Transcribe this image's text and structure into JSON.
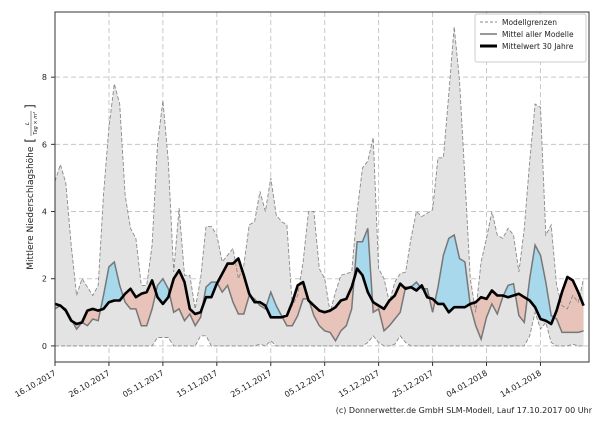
{
  "chart_data": {
    "type": "area",
    "ylabel": "Mittlere Niederschlagshöhe",
    "yunit": {
      "numerator": "L",
      "denominator": "Tag × m²"
    },
    "xlabel": "",
    "ylim": [
      -0.48,
      9.94
    ],
    "yticks": [
      0,
      2,
      4,
      6,
      8
    ],
    "xticks": [
      "16.10.2017",
      "26.10.2017",
      "05.11.2017",
      "15.11.2017",
      "25.11.2017",
      "05.12.2017",
      "15.12.2017",
      "25.12.2017",
      "04.01.2018",
      "14.01.2018"
    ],
    "xlim": [
      "16.10.2017",
      "23.01.2018"
    ],
    "grid": true,
    "legend_position": "top-right",
    "legend": [
      "Modellgrenzen",
      "Mittel aller Modelle",
      "Mittelwert 30 Jahre"
    ],
    "colors": {
      "band": "#e3e3e3",
      "above": "#a8d8eb",
      "below": "#e8c3b9",
      "below_bounds": "#fddcd3",
      "model_mean": "#777777",
      "climate_mean": "#000000",
      "bounds": "#8a8a8a"
    },
    "x": [
      "16.10.2017",
      "17.10.2017",
      "18.10.2017",
      "19.10.2017",
      "20.10.2017",
      "21.10.2017",
      "22.10.2017",
      "23.10.2017",
      "24.10.2017",
      "25.10.2017",
      "26.10.2017",
      "27.10.2017",
      "28.10.2017",
      "29.10.2017",
      "30.10.2017",
      "31.10.2017",
      "01.11.2017",
      "02.11.2017",
      "03.11.2017",
      "04.11.2017",
      "05.11.2017",
      "06.11.2017",
      "07.11.2017",
      "08.11.2017",
      "09.11.2017",
      "10.11.2017",
      "11.11.2017",
      "12.11.2017",
      "13.11.2017",
      "14.11.2017",
      "15.11.2017",
      "16.11.2017",
      "17.11.2017",
      "18.11.2017",
      "19.11.2017",
      "20.11.2017",
      "21.11.2017",
      "22.11.2017",
      "23.11.2017",
      "24.11.2017",
      "25.11.2017",
      "26.11.2017",
      "27.11.2017",
      "28.11.2017",
      "29.11.2017",
      "30.11.2017",
      "01.12.2017",
      "02.12.2017",
      "03.12.2017",
      "04.12.2017",
      "05.12.2017",
      "06.12.2017",
      "07.12.2017",
      "08.12.2017",
      "09.12.2017",
      "10.12.2017",
      "11.12.2017",
      "12.12.2017",
      "13.12.2017",
      "14.12.2017",
      "15.12.2017",
      "16.12.2017",
      "17.12.2017",
      "18.12.2017",
      "19.12.2017",
      "20.12.2017",
      "21.12.2017",
      "22.12.2017",
      "23.12.2017",
      "24.12.2017",
      "25.12.2017",
      "26.12.2017",
      "27.12.2017",
      "28.12.2017",
      "29.12.2017",
      "30.12.2017",
      "31.12.2017",
      "01.01.2018",
      "02.01.2018",
      "03.01.2018",
      "04.01.2018",
      "05.01.2018",
      "06.01.2018",
      "07.01.2018",
      "08.01.2018",
      "09.01.2018",
      "10.01.2018",
      "11.01.2018",
      "12.01.2018",
      "13.01.2018",
      "14.01.2018",
      "15.01.2018",
      "16.01.2018",
      "17.01.2018",
      "18.01.2018",
      "19.01.2018",
      "20.01.2018",
      "21.01.2018",
      "22.01.2018"
    ],
    "series": [
      {
        "name": "Modellgrenzen",
        "role": "upper",
        "values": [
          4.9,
          5.4,
          4.85,
          3.0,
          1.5,
          2.0,
          1.75,
          1.5,
          1.8,
          4.5,
          6.5,
          7.8,
          7.2,
          4.5,
          3.5,
          3.2,
          1.8,
          1.8,
          3.0,
          6.0,
          7.3,
          5.5,
          2.2,
          4.1,
          2.1,
          2.1,
          1.1,
          2.0,
          3.55,
          3.55,
          3.3,
          2.5,
          2.7,
          2.9,
          2.0,
          2.4,
          3.6,
          3.7,
          4.6,
          4.0,
          5.0,
          3.9,
          3.7,
          3.6,
          1.2,
          1.5,
          2.5,
          4.0,
          4.0,
          2.3,
          2.0,
          1.0,
          1.6,
          2.1,
          2.15,
          2.2,
          4.0,
          5.3,
          5.5,
          6.2,
          2.3,
          2.0,
          1.3,
          1.9,
          2.15,
          2.2,
          3.2,
          4.0,
          3.85,
          3.95,
          4.05,
          5.6,
          5.6,
          7.5,
          9.5,
          7.9,
          5.0,
          2.0,
          1.0,
          2.5,
          3.2,
          4.0,
          3.3,
          3.2,
          3.5,
          3.3,
          2.2,
          3.5,
          5.5,
          7.2,
          7.1,
          3.3,
          3.6,
          1.8,
          1.2,
          1.1,
          1.5,
          1.3,
          2.0
        ]
      },
      {
        "name": "Modellgrenzen",
        "role": "lower",
        "values": [
          0,
          0,
          0,
          0,
          0,
          0,
          0,
          0,
          0,
          0,
          0,
          0,
          0,
          0,
          0,
          0,
          0,
          0,
          0,
          0.25,
          0.25,
          0.25,
          0,
          0,
          0,
          0,
          0,
          0.3,
          0.3,
          0,
          0,
          0,
          0,
          0,
          0,
          0,
          0,
          0,
          0.05,
          0,
          0.15,
          0,
          0,
          0,
          0,
          0,
          0,
          0,
          0,
          0,
          0,
          0,
          0,
          0,
          0,
          0,
          0,
          0,
          0.1,
          0.3,
          0.1,
          0,
          0,
          0.05,
          0.3,
          0.1,
          0,
          0,
          0,
          0,
          0,
          0,
          0,
          0,
          0,
          0,
          0,
          0,
          0,
          0,
          0,
          0,
          0,
          0,
          0,
          0,
          0,
          0,
          0.3,
          1.0,
          0.5,
          0.7,
          0.1,
          0,
          0,
          0,
          0.05,
          0,
          0
        ]
      },
      {
        "name": "Mittel aller Modelle",
        "role": "model_mean",
        "values": [
          1.1,
          1.2,
          1.1,
          0.8,
          0.5,
          0.7,
          0.6,
          0.8,
          0.75,
          1.5,
          2.35,
          2.5,
          1.8,
          1.3,
          1.1,
          1.1,
          0.6,
          0.6,
          1.1,
          1.8,
          2.0,
          1.7,
          1.0,
          1.1,
          0.75,
          0.95,
          0.6,
          0.85,
          1.75,
          1.9,
          1.9,
          1.6,
          1.8,
          1.3,
          0.95,
          0.95,
          1.5,
          1.4,
          1.2,
          1.1,
          1.6,
          1.2,
          0.9,
          0.6,
          0.6,
          0.9,
          1.4,
          1.4,
          0.9,
          0.6,
          0.45,
          0.4,
          0.15,
          0.45,
          0.6,
          1.1,
          3.1,
          3.1,
          3.5,
          1.0,
          1.1,
          0.45,
          0.6,
          0.8,
          1.0,
          1.75,
          1.75,
          1.9,
          1.7,
          1.7,
          1.0,
          1.75,
          2.7,
          3.2,
          3.3,
          2.6,
          2.5,
          1.2,
          0.6,
          0.2,
          0.85,
          1.25,
          0.95,
          1.45,
          1.8,
          1.85,
          0.9,
          0.7,
          2.0,
          3.0,
          2.7,
          1.9,
          0.9,
          0.8,
          0.4,
          0.4,
          0.4,
          0.4,
          0.45
        ]
      },
      {
        "name": "Mittelwert 30 Jahre",
        "role": "climate_mean",
        "values": [
          1.25,
          1.2,
          1.05,
          0.75,
          0.65,
          0.7,
          1.05,
          1.1,
          1.05,
          1.1,
          1.3,
          1.35,
          1.35,
          1.55,
          1.7,
          1.45,
          1.55,
          1.6,
          1.95,
          1.45,
          1.25,
          1.45,
          2.0,
          2.25,
          1.9,
          1.1,
          0.95,
          1.0,
          1.45,
          1.45,
          1.85,
          2.15,
          2.45,
          2.45,
          2.6,
          2.1,
          1.55,
          1.3,
          1.3,
          1.2,
          0.85,
          0.85,
          0.85,
          0.9,
          1.3,
          1.8,
          1.9,
          1.35,
          1.2,
          1.05,
          1.0,
          1.05,
          1.15,
          1.35,
          1.4,
          1.75,
          2.3,
          2.1,
          1.6,
          1.3,
          1.2,
          1.1,
          1.35,
          1.5,
          1.85,
          1.7,
          1.75,
          1.65,
          1.8,
          1.45,
          1.4,
          1.25,
          1.25,
          1.0,
          1.15,
          1.15,
          1.15,
          1.25,
          1.3,
          1.45,
          1.4,
          1.65,
          1.5,
          1.5,
          1.45,
          1.5,
          1.55,
          1.45,
          1.35,
          1.15,
          0.8,
          0.75,
          0.65,
          1.05,
          1.6,
          2.05,
          1.95,
          1.6,
          1.2
        ]
      }
    ]
  },
  "footer": "(c) Donnerwetter.de GmbH SLM-Modell, Lauf 17.10.2017 00 Uhr"
}
